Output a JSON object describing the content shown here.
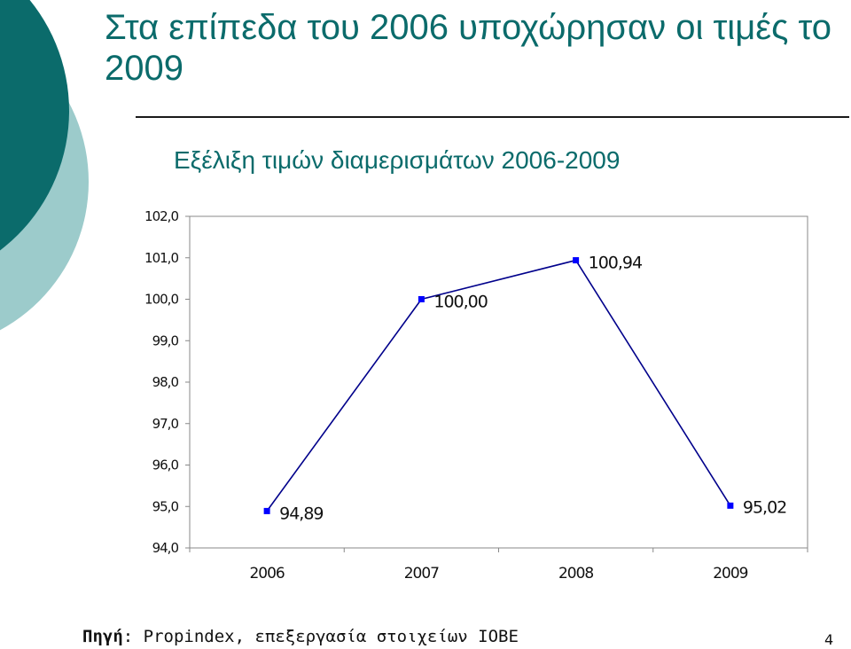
{
  "slide": {
    "title": "Στα επίπεδα του 2006 υποχώρησαν οι τιμές το 2009",
    "source_label": "Πηγή",
    "source_text": ": Propindex, επεξεργασία στοιχείων ΙΟΒΕ",
    "page_number": "4"
  },
  "colors": {
    "accent_dark": "#0b6b6b",
    "accent_light": "#9ccbcb",
    "series_line": "#00008b",
    "series_marker": "#0000ff",
    "gridline": "#c8c8c8",
    "axis": "#888888"
  },
  "chart_data": {
    "type": "line",
    "title": "Εξέλιξη τιμών διαμερισμάτων 2006-2009",
    "categories": [
      "2006",
      "2007",
      "2008",
      "2009"
    ],
    "series": [
      {
        "values": [
          94.89,
          100.0,
          100.94,
          95.02
        ],
        "value_labels": [
          "94,89",
          "100,00",
          "100,94",
          "95,02"
        ]
      }
    ],
    "ylim": [
      94,
      102
    ],
    "ytick_step": 1,
    "ytick_labels": [
      "94,0",
      "95,0",
      "96,0",
      "97,0",
      "98,0",
      "99,0",
      "100,0",
      "101,0",
      "102,0"
    ],
    "grid": "none",
    "legend": "none",
    "xlabel": "",
    "ylabel": ""
  }
}
